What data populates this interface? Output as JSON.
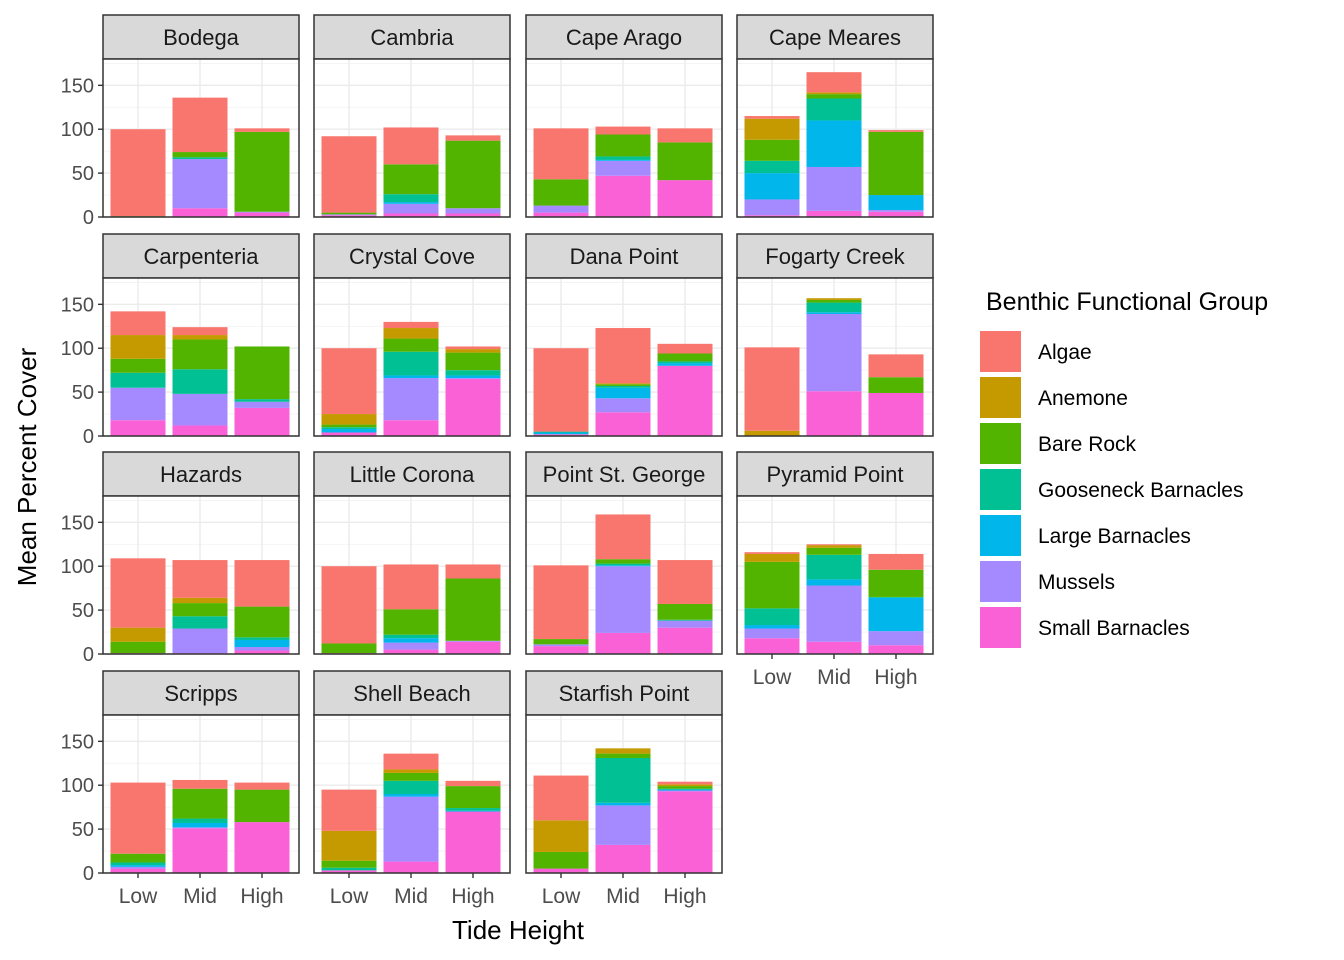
{
  "chart_data": {
    "type": "bar",
    "subtype": "stacked-faceted",
    "xlabel": "Tide Height",
    "ylabel": "Mean Percent Cover",
    "ylim": [
      0,
      180
    ],
    "yticks": [
      0,
      50,
      100,
      150
    ],
    "grid": true,
    "legend_position": "right",
    "legend_title": "Benthic Functional Group",
    "categories": [
      "Low",
      "Mid",
      "High"
    ],
    "groups": [
      {
        "name": "Algae",
        "color": "#F8766D"
      },
      {
        "name": "Anemone",
        "color": "#C49A00"
      },
      {
        "name": "Bare Rock",
        "color": "#53B400"
      },
      {
        "name": "Gooseneck Barnacles",
        "color": "#00C094"
      },
      {
        "name": "Large Barnacles",
        "color": "#00B6EB"
      },
      {
        "name": "Mussels",
        "color": "#A58AFF"
      },
      {
        "name": "Small Barnacles",
        "color": "#FB61D7"
      }
    ],
    "stack_order_bottom_to_top": [
      "Small Barnacles",
      "Mussels",
      "Large Barnacles",
      "Gooseneck Barnacles",
      "Bare Rock",
      "Anemone",
      "Algae"
    ],
    "panels": [
      {
        "site": "Bodega",
        "bars": [
          {
            "Algae": 99,
            "Bare Rock": 1
          },
          {
            "Small Barnacles": 10,
            "Mussels": 56,
            "Gooseneck Barnacles": 2,
            "Bare Rock": 6,
            "Algae": 62
          },
          {
            "Small Barnacles": 5,
            "Mussels": 1,
            "Bare Rock": 91,
            "Algae": 4
          }
        ]
      },
      {
        "site": "Cambria",
        "bars": [
          {
            "Small Barnacles": 2,
            "Mussels": 1,
            "Bare Rock": 2,
            "Algae": 87
          },
          {
            "Small Barnacles": 4,
            "Mussels": 11,
            "Large Barnacles": 2,
            "Gooseneck Barnacles": 9,
            "Bare Rock": 34,
            "Algae": 42
          },
          {
            "Small Barnacles": 4,
            "Mussels": 6,
            "Bare Rock": 77,
            "Algae": 6
          }
        ]
      },
      {
        "site": "Cape Arago",
        "bars": [
          {
            "Small Barnacles": 5,
            "Mussels": 8,
            "Bare Rock": 30,
            "Algae": 58
          },
          {
            "Small Barnacles": 47,
            "Mussels": 17,
            "Large Barnacles": 1,
            "Gooseneck Barnacles": 4,
            "Bare Rock": 25,
            "Algae": 9
          },
          {
            "Small Barnacles": 42,
            "Bare Rock": 43,
            "Algae": 16
          }
        ]
      },
      {
        "site": "Cape Meares",
        "bars": [
          {
            "Small Barnacles": 2,
            "Mussels": 18,
            "Large Barnacles": 30,
            "Gooseneck Barnacles": 14,
            "Bare Rock": 24,
            "Anemone": 24,
            "Algae": 3
          },
          {
            "Small Barnacles": 7,
            "Mussels": 50,
            "Large Barnacles": 53,
            "Gooseneck Barnacles": 25,
            "Bare Rock": 5,
            "Anemone": 2,
            "Algae": 23
          },
          {
            "Small Barnacles": 6,
            "Mussels": 2,
            "Large Barnacles": 17,
            "Bare Rock": 72,
            "Algae": 2
          }
        ]
      },
      {
        "site": "Carpenteria",
        "bars": [
          {
            "Small Barnacles": 18,
            "Mussels": 37,
            "Gooseneck Barnacles": 17,
            "Bare Rock": 16,
            "Anemone": 27,
            "Algae": 27
          },
          {
            "Small Barnacles": 12,
            "Mussels": 36,
            "Gooseneck Barnacles": 28,
            "Bare Rock": 34,
            "Anemone": 5,
            "Algae": 9
          },
          {
            "Small Barnacles": 32,
            "Mussels": 7,
            "Gooseneck Barnacles": 3,
            "Bare Rock": 60
          }
        ]
      },
      {
        "site": "Crystal Cove",
        "bars": [
          {
            "Small Barnacles": 4,
            "Large Barnacles": 4,
            "Gooseneck Barnacles": 2,
            "Bare Rock": 3,
            "Anemone": 12,
            "Algae": 75
          },
          {
            "Small Barnacles": 18,
            "Mussels": 48,
            "Large Barnacles": 3,
            "Gooseneck Barnacles": 27,
            "Bare Rock": 15,
            "Anemone": 12,
            "Algae": 7
          },
          {
            "Small Barnacles": 65,
            "Mussels": 1,
            "Large Barnacles": 3,
            "Gooseneck Barnacles": 6,
            "Bare Rock": 20,
            "Anemone": 4,
            "Algae": 3
          }
        ]
      },
      {
        "site": "Dana Point",
        "bars": [
          {
            "Small Barnacles": 2,
            "Large Barnacles": 2,
            "Gooseneck Barnacles": 1,
            "Algae": 95
          },
          {
            "Small Barnacles": 27,
            "Mussels": 16,
            "Large Barnacles": 12,
            "Gooseneck Barnacles": 2,
            "Bare Rock": 2,
            "Anemone": 1,
            "Algae": 63
          },
          {
            "Small Barnacles": 80,
            "Large Barnacles": 3,
            "Gooseneck Barnacles": 2,
            "Bare Rock": 9,
            "Algae": 11
          }
        ]
      },
      {
        "site": "Fogarty Creek",
        "bars": [
          {
            "Anemone": 6,
            "Algae": 95
          },
          {
            "Small Barnacles": 51,
            "Mussels": 88,
            "Large Barnacles": 2,
            "Gooseneck Barnacles": 11,
            "Bare Rock": 3,
            "Anemone": 2
          },
          {
            "Small Barnacles": 49,
            "Bare Rock": 18,
            "Algae": 26
          }
        ]
      },
      {
        "site": "Hazards",
        "bars": [
          {
            "Small Barnacles": 1,
            "Bare Rock": 13,
            "Anemone": 16,
            "Algae": 79
          },
          {
            "Small Barnacles": 1,
            "Mussels": 28,
            "Gooseneck Barnacles": 14,
            "Bare Rock": 15,
            "Anemone": 6,
            "Algae": 43
          },
          {
            "Small Barnacles": 4,
            "Mussels": 4,
            "Large Barnacles": 8,
            "Gooseneck Barnacles": 3,
            "Bare Rock": 35,
            "Algae": 53
          }
        ]
      },
      {
        "site": "Little Corona",
        "bars": [
          {
            "Small Barnacles": 1,
            "Bare Rock": 11,
            "Algae": 88
          },
          {
            "Small Barnacles": 5,
            "Mussels": 8,
            "Large Barnacles": 5,
            "Gooseneck Barnacles": 4,
            "Bare Rock": 29,
            "Algae": 51
          },
          {
            "Small Barnacles": 14,
            "Mussels": 1,
            "Bare Rock": 71,
            "Algae": 16
          }
        ]
      },
      {
        "site": "Point St. George",
        "bars": [
          {
            "Small Barnacles": 9,
            "Mussels": 2,
            "Bare Rock": 6,
            "Algae": 84
          },
          {
            "Small Barnacles": 24,
            "Mussels": 76,
            "Large Barnacles": 1,
            "Gooseneck Barnacles": 2,
            "Bare Rock": 5,
            "Algae": 51
          },
          {
            "Small Barnacles": 30,
            "Mussels": 8,
            "Gooseneck Barnacles": 1,
            "Bare Rock": 18,
            "Algae": 50
          }
        ]
      },
      {
        "site": "Pyramid Point",
        "bars": [
          {
            "Small Barnacles": 18,
            "Mussels": 11,
            "Large Barnacles": 4,
            "Gooseneck Barnacles": 19,
            "Bare Rock": 53,
            "Anemone": 9,
            "Algae": 2
          },
          {
            "Small Barnacles": 14,
            "Mussels": 64,
            "Large Barnacles": 7,
            "Gooseneck Barnacles": 28,
            "Bare Rock": 8,
            "Anemone": 3,
            "Algae": 1
          },
          {
            "Small Barnacles": 10,
            "Mussels": 16,
            "Large Barnacles": 38,
            "Gooseneck Barnacles": 1,
            "Bare Rock": 31,
            "Algae": 18
          }
        ]
      },
      {
        "site": "Scripps",
        "bars": [
          {
            "Small Barnacles": 5,
            "Mussels": 2,
            "Large Barnacles": 2,
            "Gooseneck Barnacles": 3,
            "Bare Rock": 10,
            "Algae": 81
          },
          {
            "Small Barnacles": 51,
            "Mussels": 1,
            "Large Barnacles": 5,
            "Gooseneck Barnacles": 5,
            "Bare Rock": 34,
            "Algae": 10
          },
          {
            "Small Barnacles": 58,
            "Bare Rock": 37,
            "Algae": 8
          }
        ]
      },
      {
        "site": "Shell Beach",
        "bars": [
          {
            "Small Barnacles": 3,
            "Gooseneck Barnacles": 3,
            "Bare Rock": 8,
            "Anemone": 34,
            "Algae": 47
          },
          {
            "Small Barnacles": 13,
            "Mussels": 74,
            "Large Barnacles": 3,
            "Gooseneck Barnacles": 15,
            "Bare Rock": 9,
            "Anemone": 4,
            "Algae": 18
          },
          {
            "Small Barnacles": 70,
            "Large Barnacles": 1,
            "Gooseneck Barnacles": 3,
            "Bare Rock": 25,
            "Algae": 6
          }
        ]
      },
      {
        "site": "Starfish Point",
        "bars": [
          {
            "Small Barnacles": 5,
            "Bare Rock": 19,
            "Anemone": 36,
            "Algae": 51
          },
          {
            "Small Barnacles": 32,
            "Mussels": 45,
            "Large Barnacles": 3,
            "Gooseneck Barnacles": 51,
            "Bare Rock": 5,
            "Anemone": 6
          },
          {
            "Small Barnacles": 93,
            "Mussels": 1,
            "Large Barnacles": 1,
            "Gooseneck Barnacles": 1,
            "Bare Rock": 3,
            "Anemone": 2,
            "Algae": 3
          }
        ]
      }
    ]
  }
}
